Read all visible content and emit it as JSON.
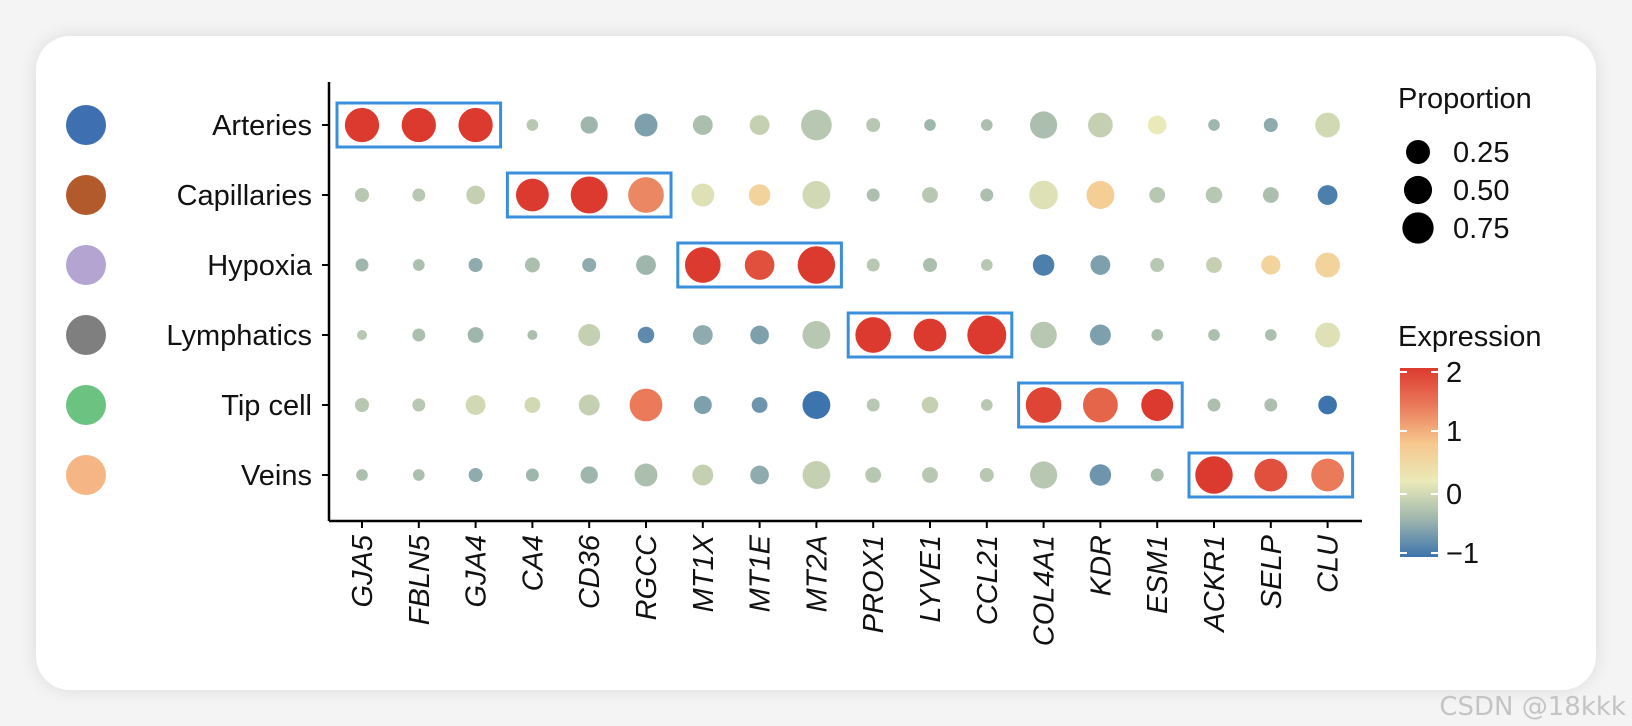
{
  "chart_data": {
    "type": "dot",
    "rows": [
      "Arteries",
      "Capillaries",
      "Hypoxia",
      "Lymphatics",
      "Tip cell",
      "Veins"
    ],
    "row_colors": [
      "#3e6fb0",
      "#b35a2d",
      "#b3a4d2",
      "#7f7f7f",
      "#6cc280",
      "#f5b584"
    ],
    "columns": [
      "GJA5",
      "FBLN5",
      "GJA4",
      "CA4",
      "CD36",
      "RGCC",
      "MT1X",
      "MT1E",
      "MT2A",
      "PROX1",
      "LYVE1",
      "CCL21",
      "COL4A1",
      "KDR",
      "ESM1",
      "ACKR1",
      "SELP",
      "CLU"
    ],
    "proportion": [
      [
        0.5,
        0.5,
        0.5,
        0.02,
        0.08,
        0.18,
        0.12,
        0.12,
        0.38,
        0.04,
        0.02,
        0.02,
        0.28,
        0.22,
        0.1,
        0.02,
        0.04,
        0.22
      ],
      [
        0.04,
        0.03,
        0.1,
        0.45,
        0.6,
        0.55,
        0.18,
        0.15,
        0.3,
        0.03,
        0.06,
        0.03,
        0.32,
        0.3,
        0.06,
        0.07,
        0.06,
        0.12
      ],
      [
        0.03,
        0.02,
        0.04,
        0.05,
        0.04,
        0.12,
        0.55,
        0.35,
        0.62,
        0.03,
        0.04,
        0.02,
        0.15,
        0.12,
        0.04,
        0.06,
        0.11,
        0.22
      ],
      [
        0.01,
        0.03,
        0.06,
        0.01,
        0.16,
        0.07,
        0.12,
        0.1,
        0.3,
        0.55,
        0.45,
        0.68,
        0.26,
        0.14,
        0.02,
        0.02,
        0.02,
        0.22
      ],
      [
        0.04,
        0.03,
        0.12,
        0.06,
        0.14,
        0.45,
        0.09,
        0.06,
        0.3,
        0.03,
        0.07,
        0.02,
        0.55,
        0.52,
        0.42,
        0.03,
        0.03,
        0.1
      ],
      [
        0.02,
        0.02,
        0.04,
        0.03,
        0.08,
        0.18,
        0.14,
        0.1,
        0.3,
        0.06,
        0.06,
        0.04,
        0.28,
        0.15,
        0.03,
        0.62,
        0.45,
        0.45
      ]
    ],
    "expression": [
      [
        2.0,
        2.0,
        2.0,
        -0.2,
        -0.4,
        -0.6,
        -0.3,
        -0.1,
        -0.2,
        -0.2,
        -0.4,
        -0.3,
        -0.3,
        -0.1,
        0.2,
        -0.4,
        -0.5,
        0.0
      ],
      [
        -0.2,
        -0.2,
        -0.1,
        2.0,
        2.0,
        1.3,
        0.1,
        0.6,
        0.0,
        -0.3,
        -0.2,
        -0.3,
        0.1,
        0.7,
        -0.2,
        -0.2,
        -0.3,
        -0.9
      ],
      [
        -0.4,
        -0.3,
        -0.5,
        -0.3,
        -0.5,
        -0.4,
        2.0,
        1.8,
        2.0,
        -0.2,
        -0.3,
        -0.2,
        -0.9,
        -0.6,
        -0.2,
        -0.1,
        0.6,
        0.6
      ],
      [
        -0.2,
        -0.3,
        -0.4,
        -0.3,
        -0.1,
        -0.8,
        -0.5,
        -0.6,
        -0.2,
        2.0,
        2.0,
        2.0,
        -0.2,
        -0.6,
        -0.3,
        -0.3,
        -0.3,
        0.1
      ],
      [
        -0.2,
        -0.2,
        0.0,
        0.0,
        -0.1,
        1.4,
        -0.6,
        -0.7,
        -1.0,
        -0.2,
        -0.1,
        -0.2,
        1.9,
        1.6,
        2.0,
        -0.3,
        -0.3,
        -1.0
      ],
      [
        -0.3,
        -0.3,
        -0.5,
        -0.4,
        -0.4,
        -0.3,
        -0.1,
        -0.5,
        -0.1,
        -0.2,
        -0.2,
        -0.2,
        -0.2,
        -0.7,
        -0.3,
        2.0,
        1.8,
        1.4
      ]
    ],
    "highlight_boxes": [
      {
        "row": 0,
        "col_start": 0,
        "col_end": 2
      },
      {
        "row": 1,
        "col_start": 3,
        "col_end": 5
      },
      {
        "row": 2,
        "col_start": 6,
        "col_end": 8
      },
      {
        "row": 3,
        "col_start": 9,
        "col_end": 11
      },
      {
        "row": 4,
        "col_start": 12,
        "col_end": 14
      },
      {
        "row": 5,
        "col_start": 15,
        "col_end": 17
      }
    ],
    "highlight_color": "#3a8fdd",
    "size_legend": {
      "title": "Proportion",
      "values": [
        0.25,
        0.5,
        0.75
      ],
      "labels": [
        "0.25",
        "0.50",
        "0.75"
      ]
    },
    "color_legend": {
      "title": "Expression",
      "range": [
        -1,
        2
      ],
      "ticks": [
        2,
        1,
        0,
        -1
      ],
      "tick_labels": [
        "2",
        "1",
        "0",
        "−1"
      ],
      "stops": [
        "#3d74ad",
        "#9fb6ad",
        "#eaeab8",
        "#f6c88e",
        "#ea7a5a",
        "#dc3a2e"
      ]
    },
    "legend_placement": "right",
    "grid": false
  },
  "watermark": "CSDN @18kkk"
}
